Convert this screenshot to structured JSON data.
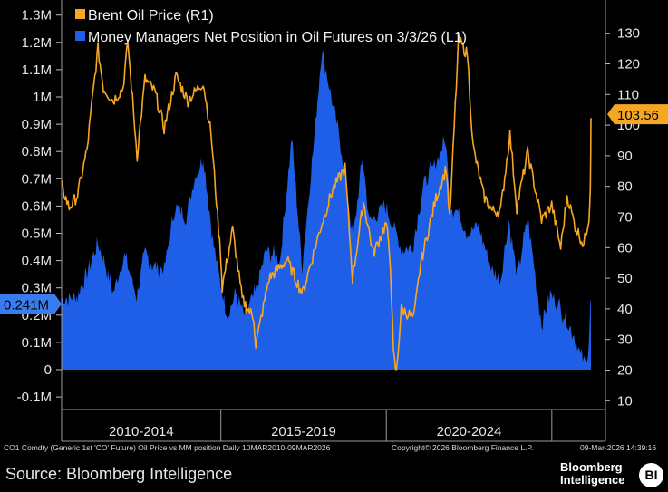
{
  "chart_data": {
    "type": "area",
    "x_range": [
      "2010-03-10",
      "2026-03-09"
    ],
    "x_period_labels": [
      "2010-2014",
      "2015-2019",
      "2020-2024"
    ],
    "legend_placement": "top-left",
    "grid": false,
    "left_axis": {
      "min": -0.15,
      "max": 1.35,
      "ticks": [
        {
          "v": 1.3,
          "label": "1.3M"
        },
        {
          "v": 1.2,
          "label": "1.2M"
        },
        {
          "v": 1.1,
          "label": "1.1M"
        },
        {
          "v": 1.0,
          "label": "1M"
        },
        {
          "v": 0.9,
          "label": "0.9M"
        },
        {
          "v": 0.8,
          "label": "0.8M"
        },
        {
          "v": 0.7,
          "label": "0.7M"
        },
        {
          "v": 0.6,
          "label": "0.6M"
        },
        {
          "v": 0.5,
          "label": "0.5M"
        },
        {
          "v": 0.4,
          "label": "0.4M"
        },
        {
          "v": 0.3,
          "label": "0.3M"
        },
        {
          "v": 0.2,
          "label": "0.2M"
        },
        {
          "v": 0.1,
          "label": "0.1M"
        },
        {
          "v": 0,
          "label": "0"
        },
        {
          "v": -0.1,
          "label": "-0.1M"
        }
      ]
    },
    "right_axis": {
      "min": 10,
      "max": 138,
      "ticks": [
        {
          "v": 130,
          "label": "130"
        },
        {
          "v": 120,
          "label": "120"
        },
        {
          "v": 110,
          "label": "110"
        },
        {
          "v": 100,
          "label": "100"
        },
        {
          "v": 90,
          "label": "90"
        },
        {
          "v": 80,
          "label": "80"
        },
        {
          "v": 70,
          "label": "70"
        },
        {
          "v": 60,
          "label": "60"
        },
        {
          "v": 50,
          "label": "50"
        },
        {
          "v": 40,
          "label": "40"
        },
        {
          "v": 30,
          "label": "30"
        },
        {
          "v": 20,
          "label": "20"
        },
        {
          "v": 10,
          "label": "10"
        }
      ]
    },
    "series": [
      {
        "name": "Brent Oil Price (R1)",
        "axis": "right",
        "color": "#f5a623",
        "last_value_label": "103.56",
        "points": [
          [
            "2010-03-10",
            80
          ],
          [
            "2010-06-01",
            73
          ],
          [
            "2010-09-01",
            77
          ],
          [
            "2010-12-15",
            92
          ],
          [
            "2011-03-01",
            113
          ],
          [
            "2011-04-15",
            125
          ],
          [
            "2011-06-15",
            112
          ],
          [
            "2011-10-01",
            108
          ],
          [
            "2012-01-15",
            112
          ],
          [
            "2012-03-10",
            127
          ],
          [
            "2012-06-20",
            90
          ],
          [
            "2012-09-15",
            115
          ],
          [
            "2013-01-01",
            111
          ],
          [
            "2013-04-15",
            99
          ],
          [
            "2013-08-25",
            116
          ],
          [
            "2014-01-01",
            108
          ],
          [
            "2014-06-20",
            114
          ],
          [
            "2014-09-15",
            97
          ],
          [
            "2014-12-31",
            57
          ],
          [
            "2015-01-15",
            47
          ],
          [
            "2015-05-10",
            66
          ],
          [
            "2015-08-25",
            43
          ],
          [
            "2015-12-31",
            37
          ],
          [
            "2016-01-20",
            28
          ],
          [
            "2016-06-15",
            50
          ],
          [
            "2016-12-31",
            56
          ],
          [
            "2017-06-20",
            45
          ],
          [
            "2017-12-31",
            66
          ],
          [
            "2018-05-20",
            79
          ],
          [
            "2018-10-03",
            86
          ],
          [
            "2018-12-24",
            50
          ],
          [
            "2019-04-25",
            75
          ],
          [
            "2019-08-10",
            58
          ],
          [
            "2019-12-31",
            68
          ],
          [
            "2020-02-15",
            55
          ],
          [
            "2020-03-20",
            25
          ],
          [
            "2020-04-21",
            19
          ],
          [
            "2020-06-15",
            40
          ],
          [
            "2020-10-31",
            37
          ],
          [
            "2021-01-15",
            55
          ],
          [
            "2021-07-01",
            76
          ],
          [
            "2021-10-25",
            86
          ],
          [
            "2021-12-01",
            69
          ],
          [
            "2022-03-08",
            128
          ],
          [
            "2022-06-15",
            123
          ],
          [
            "2022-08-15",
            93
          ],
          [
            "2022-12-10",
            77
          ],
          [
            "2023-03-15",
            72
          ],
          [
            "2023-06-15",
            72
          ],
          [
            "2023-09-27",
            97
          ],
          [
            "2023-12-12",
            73
          ],
          [
            "2024-04-10",
            91
          ],
          [
            "2024-09-10",
            69
          ],
          [
            "2024-12-31",
            74
          ],
          [
            "2025-04-09",
            60
          ],
          [
            "2025-06-20",
            77
          ],
          [
            "2025-09-15",
            67
          ],
          [
            "2025-12-20",
            61
          ],
          [
            "2026-02-15",
            70
          ],
          [
            "2026-03-02",
            80
          ],
          [
            "2026-03-09",
            103.56
          ]
        ]
      },
      {
        "name": "Money Managers Net Position in Oil Futures on 3/3/26 (L1)",
        "axis": "left",
        "color": "#1f5fe8",
        "last_value_label": "0.241M",
        "points": [
          [
            "2010-03-10",
            0.26
          ],
          [
            "2010-09-01",
            0.27
          ],
          [
            "2010-12-15",
            0.36
          ],
          [
            "2011-04-15",
            0.46
          ],
          [
            "2011-07-01",
            0.39
          ],
          [
            "2011-10-01",
            0.28
          ],
          [
            "2012-02-01",
            0.42
          ],
          [
            "2012-06-15",
            0.27
          ],
          [
            "2012-09-15",
            0.43
          ],
          [
            "2012-12-15",
            0.38
          ],
          [
            "2013-04-15",
            0.37
          ],
          [
            "2013-08-15",
            0.6
          ],
          [
            "2013-12-15",
            0.56
          ],
          [
            "2014-03-15",
            0.7
          ],
          [
            "2014-06-20",
            0.78
          ],
          [
            "2014-10-15",
            0.45
          ],
          [
            "2014-12-31",
            0.31
          ],
          [
            "2015-03-15",
            0.2
          ],
          [
            "2015-06-15",
            0.28
          ],
          [
            "2015-09-15",
            0.2
          ],
          [
            "2016-01-15",
            0.28
          ],
          [
            "2016-05-15",
            0.44
          ],
          [
            "2016-10-15",
            0.4
          ],
          [
            "2017-02-20",
            0.85
          ],
          [
            "2017-06-15",
            0.38
          ],
          [
            "2017-10-15",
            0.8
          ],
          [
            "2018-01-20",
            1.18
          ],
          [
            "2018-05-15",
            0.98
          ],
          [
            "2018-08-15",
            0.83
          ],
          [
            "2018-12-31",
            0.48
          ],
          [
            "2019-04-15",
            0.78
          ],
          [
            "2019-06-30",
            0.54
          ],
          [
            "2019-12-15",
            0.6
          ],
          [
            "2020-03-30",
            0.52
          ],
          [
            "2020-06-15",
            0.44
          ],
          [
            "2020-10-15",
            0.45
          ],
          [
            "2021-02-15",
            0.68
          ],
          [
            "2021-06-15",
            0.75
          ],
          [
            "2021-10-15",
            0.84
          ],
          [
            "2021-12-15",
            0.6
          ],
          [
            "2022-03-01",
            0.58
          ],
          [
            "2022-06-15",
            0.5
          ],
          [
            "2022-10-15",
            0.53
          ],
          [
            "2023-03-15",
            0.36
          ],
          [
            "2023-06-15",
            0.33
          ],
          [
            "2023-09-15",
            0.55
          ],
          [
            "2023-12-15",
            0.34
          ],
          [
            "2024-04-10",
            0.56
          ],
          [
            "2024-09-10",
            0.17
          ],
          [
            "2024-12-15",
            0.28
          ],
          [
            "2025-03-15",
            0.24
          ],
          [
            "2025-06-15",
            0.18
          ],
          [
            "2025-09-15",
            0.12
          ],
          [
            "2025-11-15",
            0.05
          ],
          [
            "2026-01-15",
            0.02
          ],
          [
            "2026-02-15",
            0.11
          ],
          [
            "2026-03-03",
            0.241
          ],
          [
            "2026-03-09",
            0.241
          ]
        ]
      }
    ]
  },
  "footer": {
    "left": "CO1 Comdty (Generic 1st 'CO' Future) Oil Price vs MM position Daily 10MAR2010-09MAR2026",
    "center": "Copyright© 2026 Bloomberg Finance L.P.",
    "right": "09-Mar-2026 14:39:16"
  },
  "source": "Source: Bloomberg Intelligence",
  "brand": {
    "line1": "Bloomberg",
    "line2": "Intelligence",
    "badge": "BI"
  }
}
